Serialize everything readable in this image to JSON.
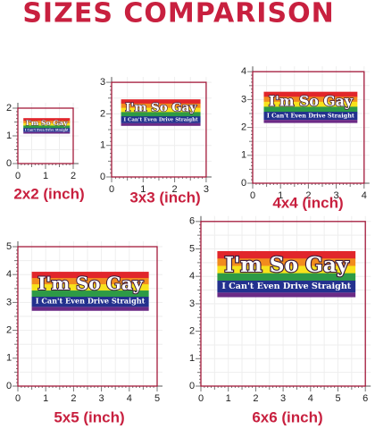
{
  "title": "SIZES COMPARISON",
  "sticker": {
    "line1": "I'm So Gay",
    "line2": "I Can't Even Drive Straight"
  },
  "panels": [
    {
      "label": "2x2 (inch)",
      "ticks": [
        0,
        1,
        2
      ]
    },
    {
      "label": "3x3 (inch)",
      "ticks": [
        0,
        1,
        2,
        3
      ]
    },
    {
      "label": "4x4 (inch)",
      "ticks": [
        0,
        1,
        2,
        3,
        4
      ]
    },
    {
      "label": "5x5 (inch)",
      "ticks": [
        0,
        1,
        2,
        3,
        4,
        5
      ]
    },
    {
      "label": "6x6 (inch)",
      "ticks": [
        0,
        1,
        2,
        3,
        4,
        5,
        6
      ]
    }
  ]
}
